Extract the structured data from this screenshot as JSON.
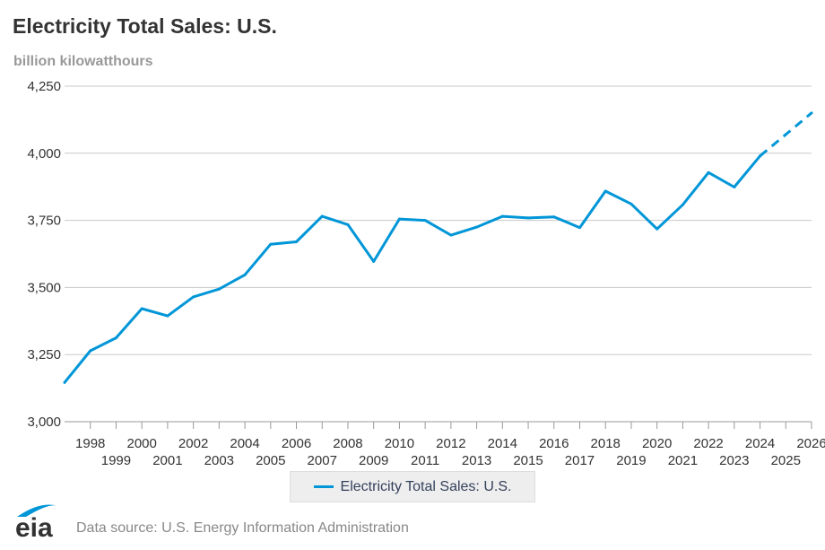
{
  "title": "Electricity Total Sales: U.S.",
  "unit_label": "billion kilowatthours",
  "source": "Data source: U.S. Energy Information Administration",
  "logo_text": "eia",
  "colors": {
    "series": "#0096d7",
    "grid": "#c8c8c8",
    "axis_text": "#333"
  },
  "chart_data": {
    "type": "line",
    "title": "Electricity Total Sales: U.S.",
    "ylabel": "billion kilowatthours",
    "xlabel": "",
    "xlim": [
      1997,
      2026
    ],
    "ylim": [
      3000,
      4250
    ],
    "yticks": [
      3000,
      3250,
      3500,
      3750,
      4000,
      4250
    ],
    "ytick_labels": [
      "3,000",
      "3,250",
      "3,500",
      "3,750",
      "4,000",
      "4,250"
    ],
    "xticks": [
      1998,
      1999,
      2000,
      2001,
      2002,
      2003,
      2004,
      2005,
      2006,
      2007,
      2008,
      2009,
      2010,
      2011,
      2012,
      2013,
      2014,
      2015,
      2016,
      2017,
      2018,
      2019,
      2020,
      2021,
      2022,
      2023,
      2024,
      2025,
      2026
    ],
    "grid": true,
    "legend": "bottom-center",
    "series": [
      {
        "name": "Electricity Total Sales: U.S.",
        "x": [
          1997,
          1998,
          1999,
          2000,
          2001,
          2002,
          2003,
          2004,
          2005,
          2006,
          2007,
          2008,
          2009,
          2010,
          2011,
          2012,
          2013,
          2014,
          2015,
          2016,
          2017,
          2018,
          2019,
          2020,
          2021,
          2022,
          2023,
          2024,
          2025,
          2026
        ],
        "values": [
          3146,
          3264,
          3312,
          3421,
          3394,
          3465,
          3494,
          3547,
          3661,
          3670,
          3765,
          3734,
          3597,
          3755,
          3750,
          3695,
          3725,
          3765,
          3759,
          3763,
          3723,
          3859,
          3811,
          3718,
          3808,
          3928,
          3874,
          3990,
          4070,
          4150
        ],
        "forecast_from": 2024
      }
    ]
  }
}
